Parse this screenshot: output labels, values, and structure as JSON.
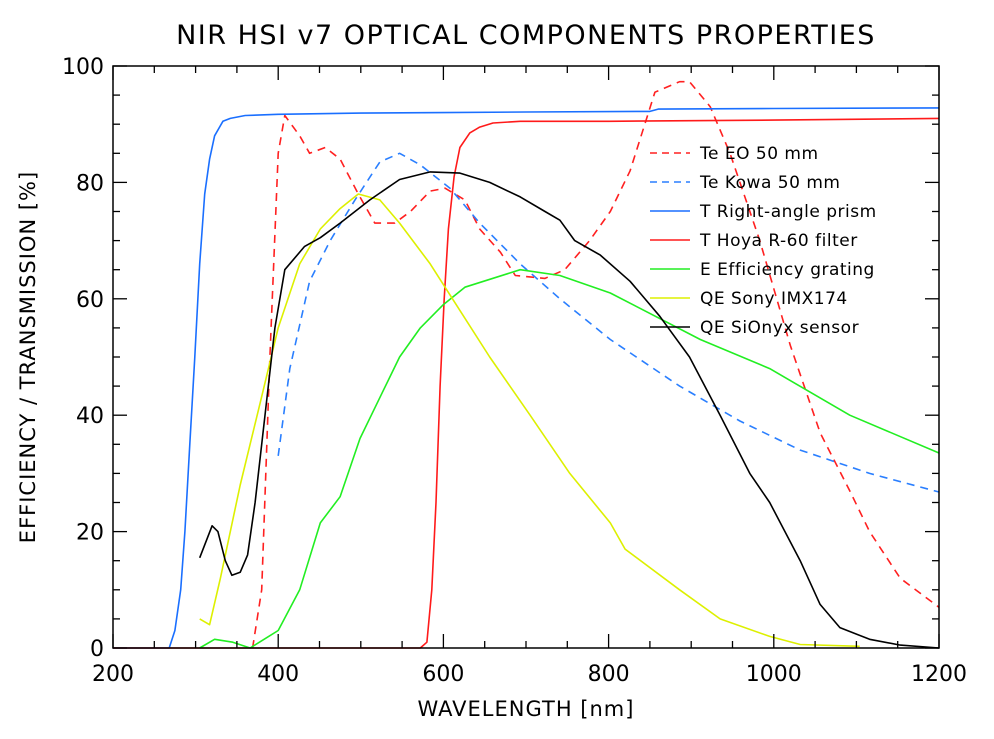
{
  "chart_data": {
    "type": "line",
    "title": "NIR HSI v7 OPTICAL COMPONENTS PROPERTIES",
    "xlabel": "WAVELENGTH [nm]",
    "ylabel": "EFFICIENCY / TRANSMISSION [%]",
    "xlim": [
      200,
      1200
    ],
    "ylim": [
      0,
      100
    ],
    "xticks": [
      200,
      400,
      600,
      800,
      1000,
      1200
    ],
    "yticks": [
      0,
      20,
      40,
      60,
      80,
      100
    ],
    "x_minor_step": 50,
    "y_minor_step": 5,
    "grid": false,
    "legend_position": "top-right",
    "series": [
      {
        "name": "Te EO 50 mm",
        "color": "#ff2020",
        "dash": true,
        "x": [
          369,
          380,
          390,
          400,
          408,
          426,
          438,
          457,
          475,
          497,
          517,
          541,
          560,
          584,
          602,
          626,
          644,
          669,
          687,
          723,
          747,
          777,
          802,
          826,
          856,
          886,
          898,
          923,
          947,
          983,
          1020,
          1056,
          1092,
          1116,
          1153,
          1200
        ],
        "y": [
          0,
          10,
          50,
          85,
          91.5,
          88,
          85,
          86,
          84,
          78,
          73,
          73,
          75,
          78.5,
          79,
          77,
          72,
          68,
          64,
          63.5,
          65,
          70,
          75,
          82,
          95.5,
          97.3,
          97.3,
          93,
          85,
          70,
          52,
          37,
          27,
          20,
          12,
          7
        ]
      },
      {
        "name": "Te Kowa 50 mm",
        "color": "#2a7fff",
        "dash": true,
        "x": [
          400,
          414,
          438,
          463,
          493,
          523,
          547,
          572,
          608,
          644,
          693,
          741,
          802,
          886,
          959,
          1032,
          1116,
          1200
        ],
        "y": [
          33,
          48,
          63,
          70,
          77,
          83.5,
          85,
          83,
          79,
          73,
          66,
          60,
          53,
          45,
          39,
          34,
          30,
          26.8
        ]
      },
      {
        "name": "T  Right-angle prism",
        "color": "#1a6fff",
        "dash": false,
        "x": [
          200,
          268,
          275,
          282,
          287,
          293,
          299,
          305,
          311,
          317,
          323,
          333,
          342,
          360,
          400,
          500,
          600,
          700,
          850,
          860,
          1000,
          1200
        ],
        "y": [
          0,
          0,
          3,
          10,
          20,
          35,
          50,
          66,
          78,
          84,
          88,
          90.5,
          91,
          91.5,
          91.7,
          91.9,
          92,
          92.1,
          92.2,
          92.6,
          92.7,
          92.8
        ]
      },
      {
        "name": "T  Hoya R-60 filter",
        "color": "#ff1a1a",
        "dash": false,
        "x": [
          200,
          572,
          580,
          586,
          591,
          596,
          601,
          606,
          613,
          620,
          632,
          644,
          660,
          693,
          800,
          1000,
          1200
        ],
        "y": [
          0,
          0,
          1,
          10,
          25,
          45,
          60,
          72,
          81,
          86,
          88.5,
          89.5,
          90.2,
          90.5,
          90.5,
          90.7,
          91
        ]
      },
      {
        "name": "E  Efficiency grating",
        "color": "#22ee22",
        "dash": false,
        "x": [
          305,
          323,
          345,
          366,
          400,
          426,
          451,
          475,
          499,
          523,
          547,
          572,
          600,
          626,
          693,
          741,
          802,
          911,
          995,
          1092,
          1200
        ],
        "y": [
          0,
          1.5,
          1,
          0,
          3,
          10,
          21.5,
          26,
          36,
          43,
          50,
          55,
          59,
          62,
          65,
          64,
          61,
          53,
          48,
          40,
          33.5
        ]
      },
      {
        "name": "QE Sony IMX174",
        "color": "#ddf000",
        "dash": false,
        "x": [
          305,
          317,
          330,
          354,
          378,
          400,
          426,
          451,
          475,
          497,
          523,
          547,
          584,
          620,
          656,
          705,
          753,
          802,
          820,
          886,
          935,
          995,
          1032,
          1104
        ],
        "y": [
          5,
          4,
          12,
          28,
          42,
          55,
          66,
          72,
          75.5,
          78,
          77,
          73,
          66,
          58,
          50,
          40,
          30,
          21.5,
          17,
          10,
          5,
          2,
          0.6,
          0.3
        ]
      },
      {
        "name": "QE SiOnyx sensor",
        "color": "#000000",
        "dash": false,
        "x": [
          305,
          320,
          327,
          336,
          344,
          354,
          363,
          372,
          384,
          396,
          408,
          432,
          451,
          475,
          511,
          547,
          584,
          620,
          656,
          693,
          723,
          741,
          759,
          790,
          826,
          862,
          898,
          935,
          971,
          995,
          1032,
          1056,
          1080,
          1116,
          1153,
          1200
        ],
        "y": [
          15.5,
          21,
          20,
          15,
          12.5,
          13,
          16,
          25,
          40,
          55,
          65,
          69,
          70.5,
          73,
          77,
          80.5,
          81.8,
          81.6,
          80,
          77.5,
          75,
          73.5,
          70,
          67.5,
          63,
          57,
          50,
          40,
          30,
          25,
          15,
          7.5,
          3.5,
          1.5,
          0.5,
          0
        ]
      }
    ]
  }
}
